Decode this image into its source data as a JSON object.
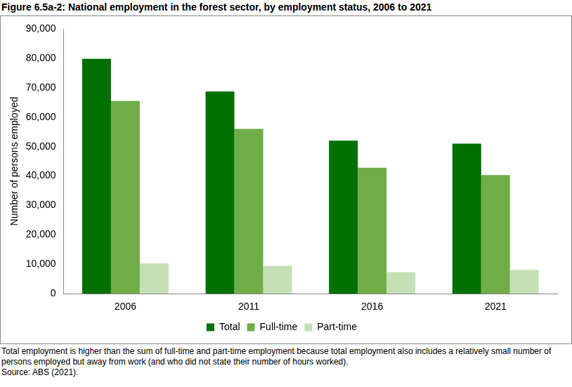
{
  "chart_data": {
    "type": "bar",
    "title": "Figure 6.5a-2: National employment in the forest sector, by employment status, 2006 to 2021",
    "y_label": "Number of persons employed",
    "categories": [
      "2006",
      "2011",
      "2016",
      "2021"
    ],
    "series": [
      {
        "name": "Total",
        "color": "#007000",
        "values": [
          79800,
          68700,
          52000,
          51000
        ]
      },
      {
        "name": "Full-time",
        "color": "#70AD47",
        "values": [
          65500,
          56000,
          42800,
          40300
        ]
      },
      {
        "name": "Part-time",
        "color": "#C5E0B4",
        "values": [
          10300,
          9500,
          7300,
          8100
        ]
      }
    ],
    "ylim": [
      0,
      90000
    ],
    "yticks": [
      0,
      {
        "value": 10000,
        "label": "10,000"
      },
      {
        "value": 20000,
        "label": "20,000"
      },
      {
        "value": 30000,
        "label": "30,000"
      },
      {
        "value": 40000,
        "label": "40,000"
      },
      {
        "value": 50000,
        "label": "50,000"
      },
      {
        "value": 60000,
        "label": "60,000"
      },
      {
        "value": 70000,
        "label": "70,000"
      },
      {
        "value": 80000,
        "label": "80,000"
      },
      {
        "value": 90000,
        "label": "90,000"
      }
    ],
    "grid": false,
    "legend": "bottom",
    "annotations": [
      "Total employment is higher than the sum of full-time and part-time employment because total employment also includes a relatively small number of persons employed but away from work (and who did not state their number of hours worked).",
      "Source: ABS (2021)."
    ]
  }
}
